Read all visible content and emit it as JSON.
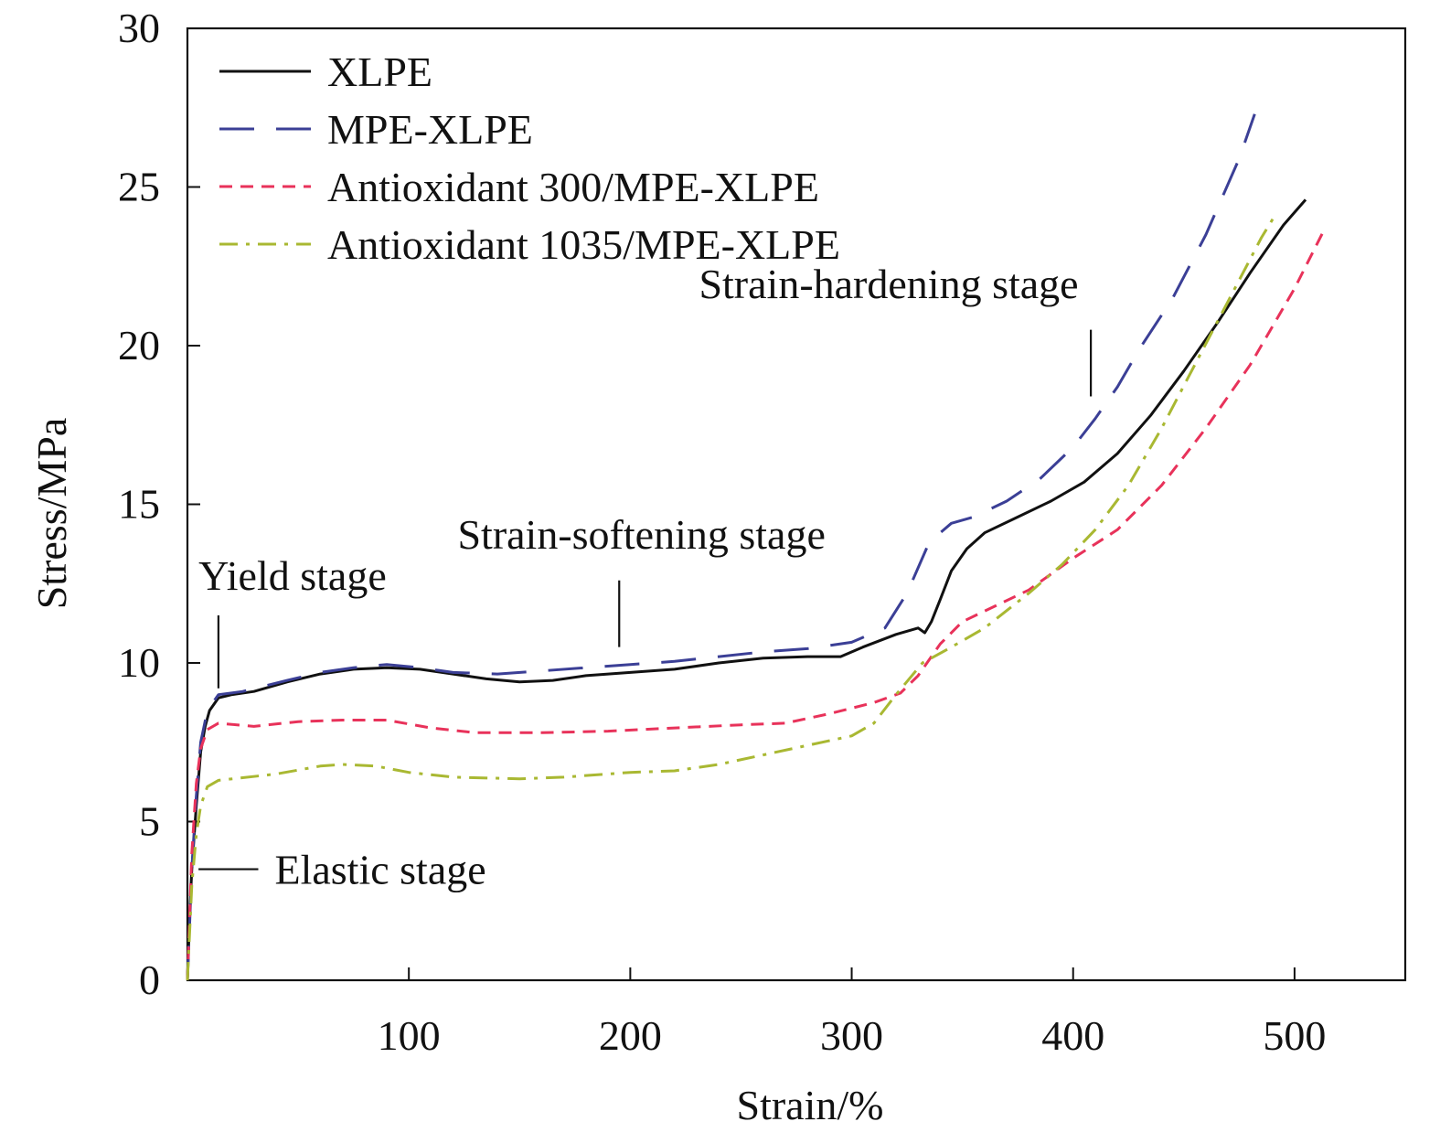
{
  "chart_data": {
    "type": "line",
    "title": "",
    "xlabel": "Strain/%",
    "ylabel": "Stress/MPa",
    "xlim": [
      0,
      550
    ],
    "ylim": [
      0,
      30
    ],
    "x_ticks": [
      100,
      200,
      300,
      400,
      500
    ],
    "y_ticks": [
      0,
      5,
      10,
      15,
      20,
      25,
      30
    ],
    "grid": false,
    "legend_position": "top-left",
    "series": [
      {
        "name": "XLPE",
        "color": "#111111",
        "dash": "solid",
        "points": [
          [
            0,
            0
          ],
          [
            1,
            2
          ],
          [
            2,
            3.5
          ],
          [
            4,
            5.5
          ],
          [
            6,
            7.2
          ],
          [
            8,
            8
          ],
          [
            10,
            8.5
          ],
          [
            14,
            8.9
          ],
          [
            20,
            9
          ],
          [
            30,
            9.1
          ],
          [
            45,
            9.4
          ],
          [
            60,
            9.65
          ],
          [
            75,
            9.8
          ],
          [
            90,
            9.85
          ],
          [
            105,
            9.8
          ],
          [
            120,
            9.65
          ],
          [
            135,
            9.5
          ],
          [
            150,
            9.4
          ],
          [
            165,
            9.45
          ],
          [
            180,
            9.6
          ],
          [
            200,
            9.7
          ],
          [
            220,
            9.8
          ],
          [
            240,
            10
          ],
          [
            260,
            10.15
          ],
          [
            280,
            10.2
          ],
          [
            295,
            10.2
          ],
          [
            305,
            10.5
          ],
          [
            320,
            10.9
          ],
          [
            330,
            11.1
          ],
          [
            333,
            10.95
          ],
          [
            336,
            11.3
          ],
          [
            340,
            12
          ],
          [
            345,
            12.9
          ],
          [
            352,
            13.6
          ],
          [
            360,
            14.1
          ],
          [
            375,
            14.6
          ],
          [
            390,
            15.1
          ],
          [
            405,
            15.7
          ],
          [
            420,
            16.6
          ],
          [
            435,
            17.8
          ],
          [
            450,
            19.2
          ],
          [
            465,
            20.7
          ],
          [
            480,
            22.3
          ],
          [
            495,
            23.8
          ],
          [
            505,
            24.6
          ]
        ]
      },
      {
        "name": "MPE-XLPE",
        "color": "#3b3f96",
        "dash": "long-dash",
        "points": [
          [
            0,
            0
          ],
          [
            2,
            3.5
          ],
          [
            4,
            5.8
          ],
          [
            6,
            7.5
          ],
          [
            9,
            8.5
          ],
          [
            14,
            9
          ],
          [
            25,
            9.1
          ],
          [
            45,
            9.45
          ],
          [
            60,
            9.7
          ],
          [
            75,
            9.85
          ],
          [
            90,
            9.95
          ],
          [
            105,
            9.85
          ],
          [
            120,
            9.7
          ],
          [
            140,
            9.65
          ],
          [
            160,
            9.75
          ],
          [
            180,
            9.85
          ],
          [
            200,
            9.95
          ],
          [
            220,
            10.05
          ],
          [
            240,
            10.2
          ],
          [
            260,
            10.35
          ],
          [
            280,
            10.45
          ],
          [
            300,
            10.65
          ],
          [
            315,
            11.1
          ],
          [
            325,
            12.2
          ],
          [
            335,
            13.8
          ],
          [
            345,
            14.4
          ],
          [
            355,
            14.6
          ],
          [
            370,
            15.1
          ],
          [
            385,
            15.8
          ],
          [
            400,
            16.8
          ],
          [
            410,
            17.7
          ],
          [
            420,
            18.7
          ],
          [
            430,
            19.9
          ],
          [
            445,
            21.5
          ],
          [
            460,
            23.5
          ],
          [
            475,
            25.9
          ],
          [
            482,
            27.3
          ]
        ]
      },
      {
        "name": "Antioxidant 300/MPE-XLPE",
        "color": "#e8325a",
        "dash": "short-dash",
        "points": [
          [
            0,
            0
          ],
          [
            2,
            4
          ],
          [
            4,
            6.2
          ],
          [
            6,
            7.3
          ],
          [
            9,
            7.9
          ],
          [
            14,
            8.1
          ],
          [
            30,
            8
          ],
          [
            50,
            8.15
          ],
          [
            70,
            8.2
          ],
          [
            90,
            8.2
          ],
          [
            110,
            7.95
          ],
          [
            130,
            7.8
          ],
          [
            160,
            7.8
          ],
          [
            190,
            7.85
          ],
          [
            220,
            7.95
          ],
          [
            250,
            8.05
          ],
          [
            270,
            8.1
          ],
          [
            290,
            8.4
          ],
          [
            310,
            8.75
          ],
          [
            322,
            9.05
          ],
          [
            330,
            9.6
          ],
          [
            340,
            10.6
          ],
          [
            350,
            11.3
          ],
          [
            365,
            11.8
          ],
          [
            380,
            12.3
          ],
          [
            400,
            13.3
          ],
          [
            420,
            14.2
          ],
          [
            440,
            15.6
          ],
          [
            460,
            17.4
          ],
          [
            480,
            19.4
          ],
          [
            500,
            21.8
          ],
          [
            513,
            23.6
          ]
        ]
      },
      {
        "name": "Antioxidant 1035/MPE-XLPE",
        "color": "#a9b832",
        "dash": "dash-dot",
        "points": [
          [
            0,
            0
          ],
          [
            2,
            3
          ],
          [
            4,
            4.6
          ],
          [
            6,
            5.5
          ],
          [
            9,
            6.1
          ],
          [
            14,
            6.3
          ],
          [
            40,
            6.5
          ],
          [
            60,
            6.75
          ],
          [
            70,
            6.8
          ],
          [
            85,
            6.75
          ],
          [
            100,
            6.55
          ],
          [
            120,
            6.4
          ],
          [
            150,
            6.35
          ],
          [
            170,
            6.4
          ],
          [
            200,
            6.55
          ],
          [
            220,
            6.6
          ],
          [
            240,
            6.8
          ],
          [
            260,
            7.1
          ],
          [
            280,
            7.4
          ],
          [
            300,
            7.7
          ],
          [
            310,
            8.1
          ],
          [
            320,
            9
          ],
          [
            332,
            10
          ],
          [
            345,
            10.5
          ],
          [
            360,
            11.1
          ],
          [
            380,
            12.2
          ],
          [
            395,
            13.1
          ],
          [
            410,
            14.2
          ],
          [
            425,
            15.6
          ],
          [
            440,
            17.4
          ],
          [
            455,
            19.4
          ],
          [
            470,
            21.4
          ],
          [
            485,
            23.4
          ],
          [
            492,
            24.2
          ]
        ]
      }
    ],
    "annotations": [
      {
        "text": "Elastic stage",
        "x": 3,
        "y": 3.5,
        "leader_from": [
          5,
          3.5
        ],
        "leader_to": [
          32,
          3.5
        ]
      },
      {
        "text": "Yield stage",
        "x": 5,
        "y": 12.3,
        "leader_from": [
          14,
          9.2
        ],
        "leader_to": [
          14,
          11.5
        ]
      },
      {
        "text": "Strain-softening stage",
        "x": 122,
        "y": 13.6,
        "leader_from": [
          195,
          10.5
        ],
        "leader_to": [
          195,
          12.6
        ]
      },
      {
        "text": "Strain-hardening stage",
        "x": 231,
        "y": 21.5,
        "leader_from": [
          408,
          18.4
        ],
        "leader_to": [
          408,
          20.5
        ]
      }
    ]
  }
}
